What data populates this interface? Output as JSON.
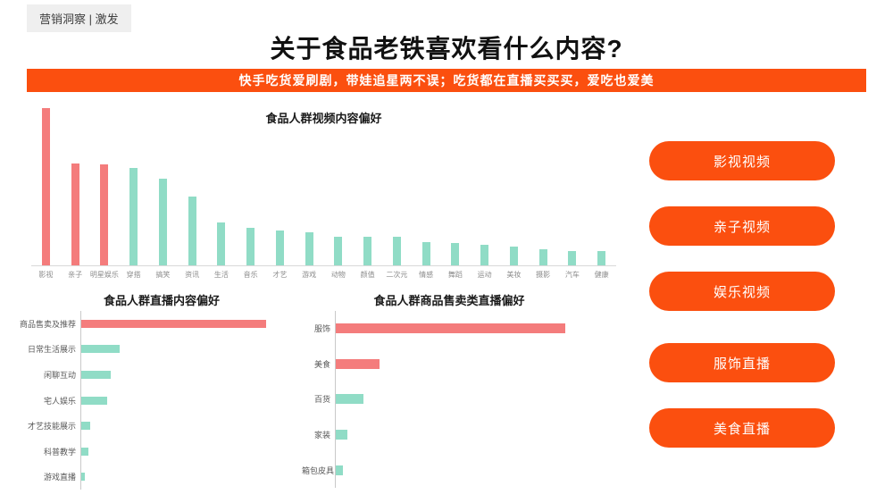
{
  "page": {
    "badge": "营销洞察 | 激发",
    "title": "关于食品老铁喜欢看什么内容?",
    "banner": "快手吃货爱刷剧，带娃追星两不误；吃货都在直播买买买，爱吃也爱美"
  },
  "colors": {
    "accent_orange": "#FB4F0F",
    "bar_pink": "#F47C7C",
    "bar_teal": "#90DCC6",
    "axis_gray": "#D9D9D9"
  },
  "chart_data": [
    {
      "type": "bar",
      "orientation": "vertical",
      "title": "食品人群视频内容偏好",
      "categories": [
        "影视",
        "亲子",
        "明星娱乐",
        "穿搭",
        "搞笑",
        "资讯",
        "生活",
        "音乐",
        "才艺",
        "游戏",
        "动物",
        "颜值",
        "二次元",
        "情感",
        "舞蹈",
        "运动",
        "美妆",
        "摄影",
        "汽车",
        "健康"
      ],
      "values": [
        100,
        65,
        64,
        62,
        55,
        44,
        27,
        24,
        22,
        21,
        18,
        18,
        18,
        15,
        14,
        13,
        12,
        10,
        9,
        9
      ],
      "bar_colors": [
        "pink",
        "pink",
        "pink",
        "teal",
        "teal",
        "teal",
        "teal",
        "teal",
        "teal",
        "teal",
        "teal",
        "teal",
        "teal",
        "teal",
        "teal",
        "teal",
        "teal",
        "teal",
        "teal",
        "teal"
      ],
      "xlabel": "",
      "ylabel": "",
      "value_scale": "relative, max bar = 100 (no axis values shown)",
      "grid": false,
      "legend": "none"
    },
    {
      "type": "bar",
      "orientation": "horizontal",
      "title": "食品人群直播内容偏好",
      "categories": [
        "商品售卖及推荐",
        "日常生活展示",
        "闲聊互动",
        "宅人娱乐",
        "才艺技能展示",
        "科普教学",
        "游戏直播"
      ],
      "values": [
        100,
        21,
        16,
        14,
        5,
        4,
        2
      ],
      "bar_colors": [
        "pink",
        "teal",
        "teal",
        "teal",
        "teal",
        "teal",
        "teal"
      ],
      "xlabel": "",
      "ylabel": "",
      "value_scale": "relative, max bar = 100 (no axis values shown)",
      "grid": false,
      "legend": "none"
    },
    {
      "type": "bar",
      "orientation": "horizontal",
      "title": "食品人群商品售卖类直播偏好",
      "categories": [
        "服饰",
        "美食",
        "百货",
        "家装",
        "箱包皮具"
      ],
      "values": [
        100,
        19,
        12,
        5,
        3
      ],
      "bar_colors": [
        "pink",
        "pink",
        "teal",
        "teal",
        "teal"
      ],
      "xlabel": "",
      "ylabel": "",
      "value_scale": "relative, max bar = 100 (no axis values shown)",
      "grid": false,
      "legend": "none"
    }
  ],
  "pills": [
    "影视视频",
    "亲子视频",
    "娱乐视频",
    "服饰直播",
    "美食直播"
  ]
}
